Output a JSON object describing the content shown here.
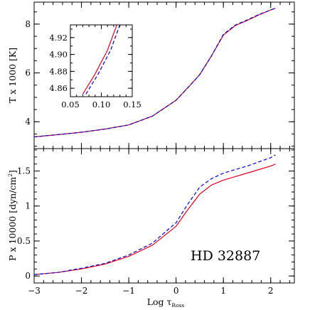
{
  "chart_data": [
    {
      "type": "line",
      "panel": "top",
      "title": "",
      "xlabel": "",
      "ylabel": "T x 1000 [K]",
      "xlim": [
        -3,
        2.5
      ],
      "ylim": [
        2.9,
        8.9
      ],
      "xticks": [
        -3,
        -2,
        -1,
        0,
        1,
        2
      ],
      "yticks": [
        4,
        6,
        8
      ],
      "ytick_labels": [
        "4",
        "6",
        "8"
      ],
      "x": [
        -3.0,
        -2.5,
        -2.0,
        -1.5,
        -1.0,
        -0.5,
        0.0,
        0.25,
        0.5,
        0.75,
        1.0,
        1.25,
        1.5,
        1.75,
        2.0,
        2.1
      ],
      "series": [
        {
          "style": "solid",
          "color": "#e0001b",
          "values": [
            3.38,
            3.47,
            3.57,
            3.7,
            3.87,
            4.23,
            4.88,
            5.4,
            5.93,
            6.7,
            7.55,
            7.94,
            8.15,
            8.38,
            8.58,
            8.65
          ]
        },
        {
          "style": "dashed",
          "color": "#0000cc",
          "values": [
            3.38,
            3.47,
            3.57,
            3.7,
            3.87,
            4.23,
            4.88,
            5.4,
            5.93,
            6.7,
            7.58,
            7.96,
            8.17,
            8.39,
            8.58,
            8.65
          ]
        }
      ],
      "grid": false
    },
    {
      "type": "line",
      "panel": "top-inset",
      "xlim": [
        0.05,
        0.15
      ],
      "ylim": [
        4.85,
        4.935
      ],
      "xticks": [
        0.05,
        0.1,
        0.15
      ],
      "xtick_labels": [
        "0.05",
        "0.10",
        "0.15"
      ],
      "yticks": [
        4.86,
        4.88,
        4.9,
        4.92
      ],
      "ytick_labels": [
        "4.86",
        "4.88",
        "4.90",
        "4.92"
      ],
      "series": [
        {
          "style": "solid",
          "color": "#e0001b",
          "x": [
            0.07,
            0.09,
            0.11,
            0.125
          ],
          "values": [
            4.853,
            4.877,
            4.905,
            4.935
          ]
        },
        {
          "style": "dashed",
          "color": "#0000cc",
          "x": [
            0.075,
            0.095,
            0.115,
            0.13
          ],
          "values": [
            4.853,
            4.877,
            4.905,
            4.935
          ]
        }
      ],
      "grid": false
    },
    {
      "type": "line",
      "panel": "bottom",
      "title": "",
      "xlabel": "Log τ",
      "xlabel_subscript": "Ross",
      "ylabel": "P x 10000 [dyn/cm",
      "ylabel_superscript": "2",
      "ylabel_suffix": "]",
      "xlim": [
        -3,
        2.5
      ],
      "ylim": [
        -0.1,
        1.82
      ],
      "xticks": [
        -3,
        -2,
        -1,
        0,
        1,
        2
      ],
      "xtick_labels": [
        "−3",
        "−2",
        "−1",
        "0",
        "1",
        "2"
      ],
      "yticks": [
        0,
        0.5,
        1,
        1.5
      ],
      "ytick_labels": [
        "0",
        "0.5",
        "1",
        "1.5"
      ],
      "x": [
        -3.0,
        -2.5,
        -2.0,
        -1.5,
        -1.0,
        -0.5,
        0.0,
        0.25,
        0.5,
        0.75,
        1.0,
        1.25,
        1.5,
        1.75,
        2.0,
        2.1
      ],
      "series": [
        {
          "style": "solid",
          "color": "#e0001b",
          "values": [
            0.02,
            0.05,
            0.1,
            0.17,
            0.28,
            0.44,
            0.71,
            0.95,
            1.17,
            1.3,
            1.37,
            1.42,
            1.47,
            1.52,
            1.57,
            1.6
          ]
        },
        {
          "style": "dashed",
          "color": "#0000cc",
          "values": [
            0.02,
            0.05,
            0.11,
            0.18,
            0.3,
            0.47,
            0.76,
            1.03,
            1.27,
            1.39,
            1.47,
            1.52,
            1.57,
            1.63,
            1.69,
            1.73
          ]
        }
      ],
      "annotation": "HD 32887",
      "grid": false
    }
  ]
}
